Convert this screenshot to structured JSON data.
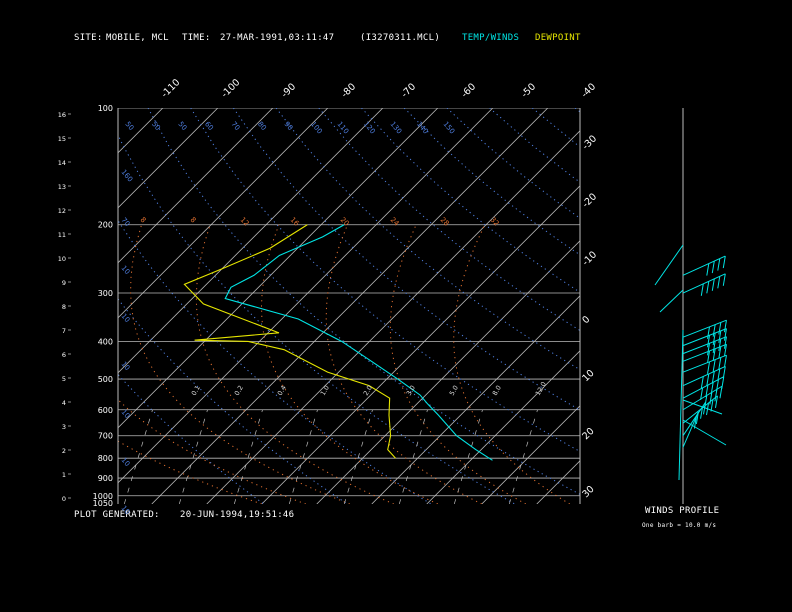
{
  "header": {
    "site_label": "SITE:",
    "site_value": "MOBILE, MCL",
    "time_label": "TIME:",
    "time_value": "27-MAR-1991,03:11:47",
    "file": "(I3270311.MCL)",
    "legend_temp": "TEMP/WINDS",
    "legend_dew": "DEWPOINT",
    "temp_color": "#00e5e5",
    "dew_color": "#e5e500"
  },
  "footer": {
    "generated_label": "PLOT GENERATED:",
    "generated_value": "20-JUN-1994,19:51:46",
    "winds_title": "WINDS PROFILE",
    "barb_note": "One barb = 10.0 m/s"
  },
  "chart_data": {
    "type": "line",
    "pressure_ticks": [
      100,
      200,
      300,
      400,
      500,
      600,
      700,
      800,
      900,
      1000,
      1050
    ],
    "height_ticks": [
      "16",
      "15",
      "14",
      "13",
      "12",
      "11",
      "10",
      "9",
      "8",
      "7",
      "6",
      "5",
      "4",
      "3",
      "2",
      "1",
      "0"
    ],
    "top_temp_ticks": [
      "-110",
      "-100",
      "-90",
      "-80",
      "-70",
      "-60",
      "-50",
      "-40"
    ],
    "right_temp_ticks": [
      "-30",
      "-20",
      "-10",
      "0",
      "10",
      "20",
      "30"
    ],
    "dry_adiabat_labels": [
      "50",
      "50",
      "50",
      "60",
      "70",
      "80",
      "90",
      "100",
      "110",
      "120",
      "130",
      "140",
      "150",
      "160",
      "70",
      "10",
      "10",
      "10",
      "10",
      "10",
      "10"
    ],
    "theta_e_labels": [
      "8",
      "8",
      "12",
      "16",
      "20",
      "24",
      "28",
      "32"
    ],
    "mixing_ratio_labels": [
      "0.1",
      "0.2",
      "0.4",
      "1.0",
      "2.0",
      "3.0",
      "5.0",
      "8.0",
      "12.0"
    ],
    "series": [
      {
        "name": "TEMP/WINDS",
        "color": "#00e5e5",
        "points": [
          {
            "p": 200,
            "t": -55.8
          },
          {
            "p": 215,
            "t": -57.5
          },
          {
            "p": 240,
            "t": -62
          },
          {
            "p": 270,
            "t": -63
          },
          {
            "p": 290,
            "t": -65
          },
          {
            "p": 310,
            "t": -64
          },
          {
            "p": 350,
            "t": -47
          },
          {
            "p": 400,
            "t": -35
          },
          {
            "p": 450,
            "t": -26
          },
          {
            "p": 500,
            "t": -18
          },
          {
            "p": 550,
            "t": -11
          },
          {
            "p": 580,
            "t": -8
          },
          {
            "p": 620,
            "t": -4
          },
          {
            "p": 700,
            "t": 3
          },
          {
            "p": 760,
            "t": 9
          },
          {
            "p": 810,
            "t": 14
          }
        ]
      },
      {
        "name": "DEWPOINT",
        "color": "#e5e500",
        "points": [
          {
            "p": 200,
            "t": -62.5
          },
          {
            "p": 230,
            "t": -65
          },
          {
            "p": 260,
            "t": -70
          },
          {
            "p": 285,
            "t": -74
          },
          {
            "p": 320,
            "t": -67
          },
          {
            "p": 380,
            "t": -48
          },
          {
            "p": 397,
            "t": -62
          },
          {
            "p": 400,
            "t": -52
          },
          {
            "p": 420,
            "t": -44
          },
          {
            "p": 480,
            "t": -32
          },
          {
            "p": 520,
            "t": -22
          },
          {
            "p": 560,
            "t": -16
          },
          {
            "p": 620,
            "t": -13
          },
          {
            "p": 700,
            "t": -9
          },
          {
            "p": 760,
            "t": -7
          },
          {
            "p": 800,
            "t": -4
          }
        ]
      }
    ],
    "wind_barbs": [
      {
        "p": 270,
        "dir_deg": 250,
        "barbs": 4
      },
      {
        "p": 300,
        "dir_deg": 250,
        "barbs": 5
      },
      {
        "p": 390,
        "dir_deg": 255,
        "barbs": 4
      },
      {
        "p": 410,
        "dir_deg": 255,
        "barbs": 4
      },
      {
        "p": 430,
        "dir_deg": 255,
        "barbs": 4
      },
      {
        "p": 450,
        "dir_deg": 255,
        "barbs": 4
      },
      {
        "p": 480,
        "dir_deg": 255,
        "barbs": 4
      },
      {
        "p": 520,
        "dir_deg": 250,
        "barbs": 5
      },
      {
        "p": 560,
        "dir_deg": 245,
        "barbs": 5
      },
      {
        "p": 600,
        "dir_deg": 240,
        "barbs": 4
      },
      {
        "p": 650,
        "dir_deg": 230,
        "barbs": 3
      },
      {
        "p": 700,
        "dir_deg": 210,
        "barbs": 2
      },
      {
        "p": 750,
        "dir_deg": 200,
        "barbs": 2
      }
    ]
  }
}
